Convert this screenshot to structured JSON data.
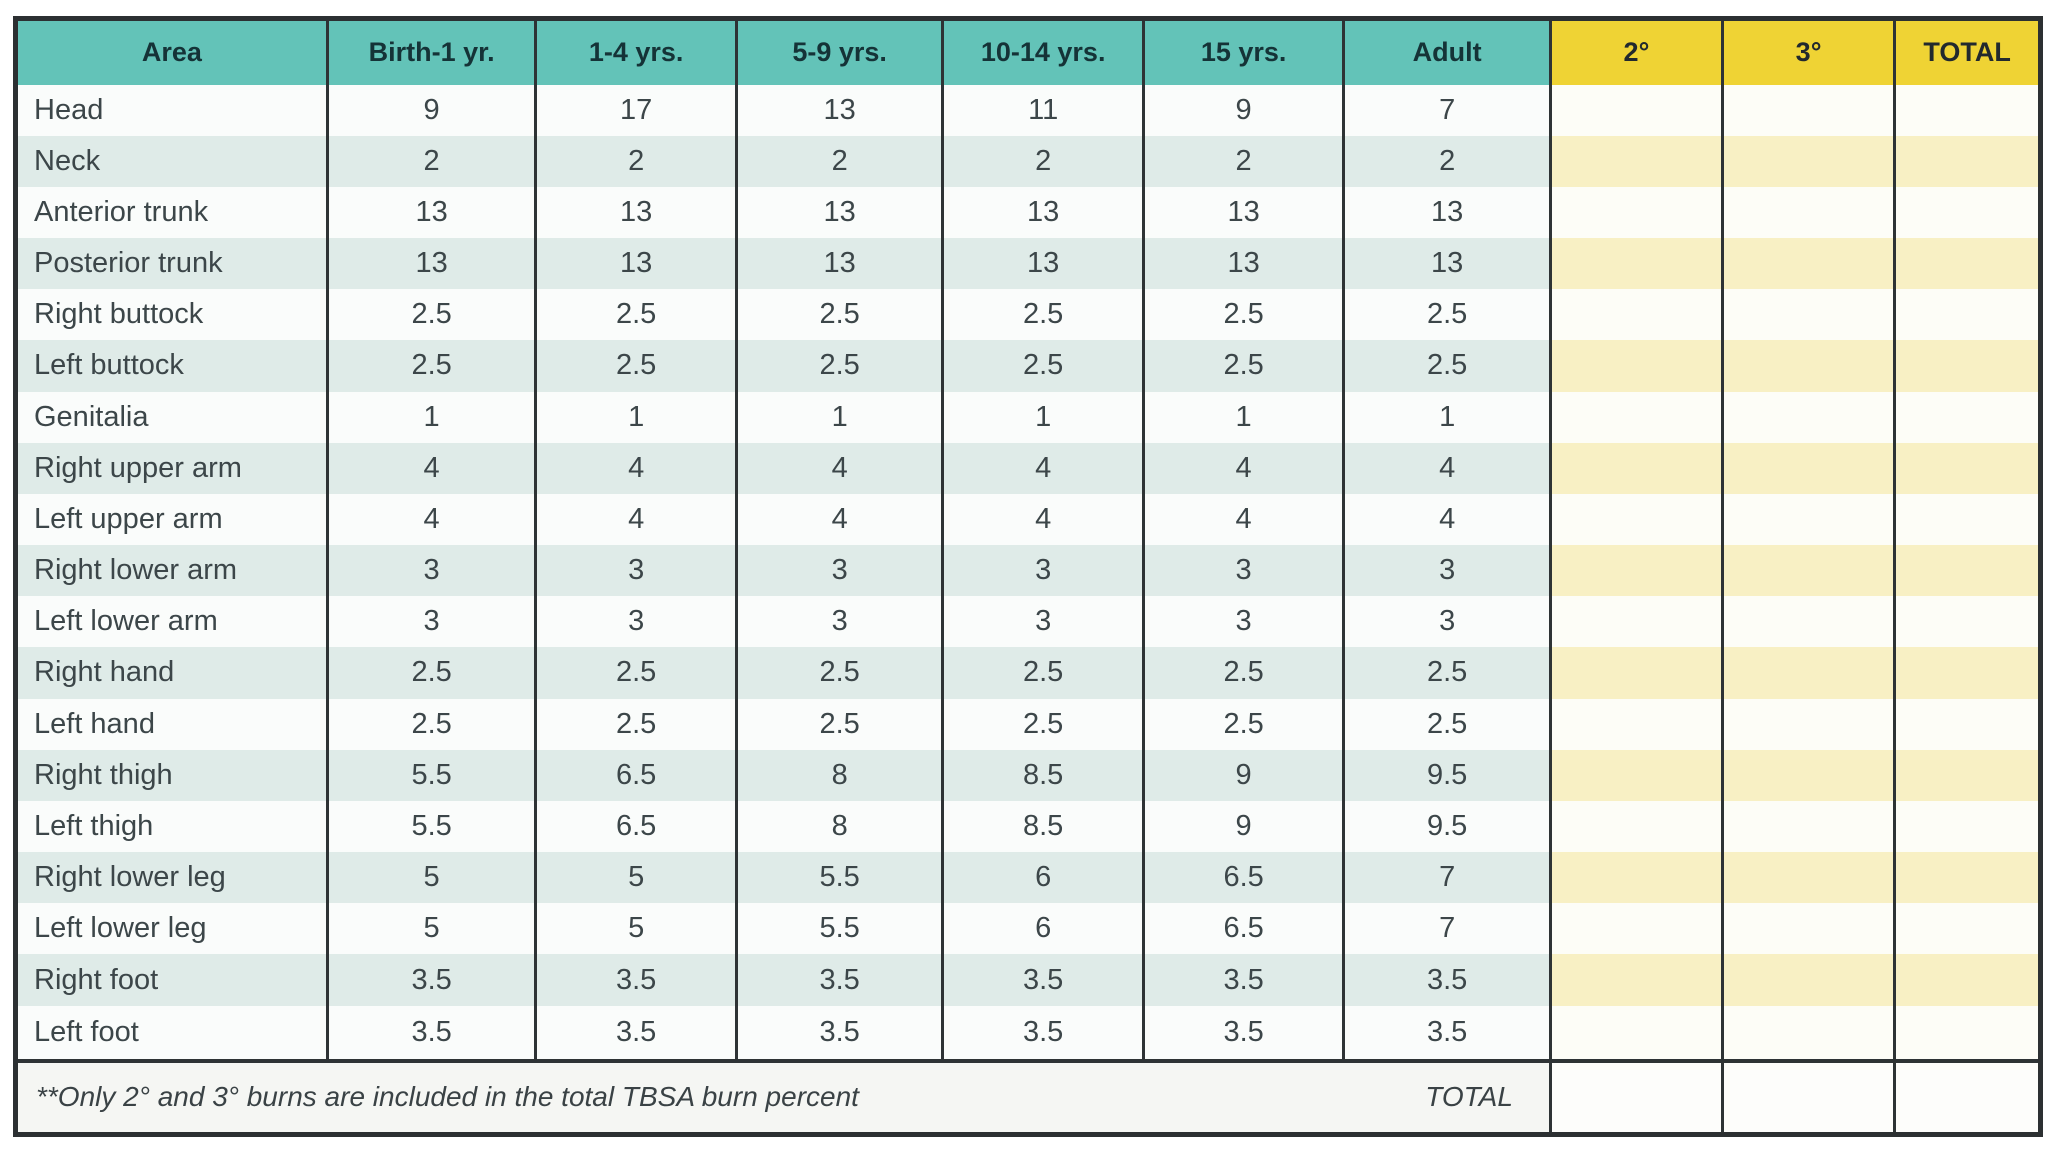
{
  "table": {
    "columns": [
      {
        "key": "area",
        "label": "Area",
        "group": "teal"
      },
      {
        "key": "age0",
        "label": "Birth-1 yr.",
        "group": "teal"
      },
      {
        "key": "age1",
        "label": "1-4 yrs.",
        "group": "teal"
      },
      {
        "key": "age5",
        "label": "5-9 yrs.",
        "group": "teal"
      },
      {
        "key": "age10",
        "label": "10-14 yrs.",
        "group": "teal"
      },
      {
        "key": "age15",
        "label": "15 yrs.",
        "group": "teal"
      },
      {
        "key": "adult",
        "label": "Adult",
        "group": "teal"
      },
      {
        "key": "deg2",
        "label": "2°",
        "group": "yellow"
      },
      {
        "key": "deg3",
        "label": "3°",
        "group": "yellow"
      },
      {
        "key": "total",
        "label": "TOTAL",
        "group": "yellow"
      }
    ],
    "rows": [
      {
        "area": "Head",
        "values": [
          "9",
          "17",
          "13",
          "11",
          "9",
          "7"
        ]
      },
      {
        "area": "Neck",
        "values": [
          "2",
          "2",
          "2",
          "2",
          "2",
          "2"
        ]
      },
      {
        "area": "Anterior trunk",
        "values": [
          "13",
          "13",
          "13",
          "13",
          "13",
          "13"
        ]
      },
      {
        "area": "Posterior trunk",
        "values": [
          "13",
          "13",
          "13",
          "13",
          "13",
          "13"
        ]
      },
      {
        "area": "Right buttock",
        "values": [
          "2.5",
          "2.5",
          "2.5",
          "2.5",
          "2.5",
          "2.5"
        ]
      },
      {
        "area": "Left buttock",
        "values": [
          "2.5",
          "2.5",
          "2.5",
          "2.5",
          "2.5",
          "2.5"
        ]
      },
      {
        "area": "Genitalia",
        "values": [
          "1",
          "1",
          "1",
          "1",
          "1",
          "1"
        ]
      },
      {
        "area": "Right upper arm",
        "values": [
          "4",
          "4",
          "4",
          "4",
          "4",
          "4"
        ]
      },
      {
        "area": "Left upper arm",
        "values": [
          "4",
          "4",
          "4",
          "4",
          "4",
          "4"
        ]
      },
      {
        "area": "Right lower arm",
        "values": [
          "3",
          "3",
          "3",
          "3",
          "3",
          "3"
        ]
      },
      {
        "area": "Left lower arm",
        "values": [
          "3",
          "3",
          "3",
          "3",
          "3",
          "3"
        ]
      },
      {
        "area": "Right hand",
        "values": [
          "2.5",
          "2.5",
          "2.5",
          "2.5",
          "2.5",
          "2.5"
        ]
      },
      {
        "area": "Left hand",
        "values": [
          "2.5",
          "2.5",
          "2.5",
          "2.5",
          "2.5",
          "2.5"
        ]
      },
      {
        "area": "Right thigh",
        "values": [
          "5.5",
          "6.5",
          "8",
          "8.5",
          "9",
          "9.5"
        ]
      },
      {
        "area": "Left thigh",
        "values": [
          "5.5",
          "6.5",
          "8",
          "8.5",
          "9",
          "9.5"
        ]
      },
      {
        "area": "Right lower leg",
        "values": [
          "5",
          "5",
          "5.5",
          "6",
          "6.5",
          "7"
        ]
      },
      {
        "area": "Left lower leg",
        "values": [
          "5",
          "5",
          "5.5",
          "6",
          "6.5",
          "7"
        ]
      },
      {
        "area": "Right foot",
        "values": [
          "3.5",
          "3.5",
          "3.5",
          "3.5",
          "3.5",
          "3.5"
        ]
      },
      {
        "area": "Left foot",
        "values": [
          "3.5",
          "3.5",
          "3.5",
          "3.5",
          "3.5",
          "3.5"
        ]
      }
    ],
    "entry_columns_empty": [
      "2°",
      "3°",
      "TOTAL"
    ],
    "footer": {
      "note": "**Only 2° and 3° burns are included in the total TBSA burn percent",
      "total_label": "TOTAL"
    }
  },
  "colors": {
    "header_teal": "#63c3b8",
    "header_yellow": "#efd334",
    "stripe_teal": "#dfebe8",
    "stripe_yellow": "#f8f0c4",
    "border_dark": "#2e3335",
    "body_text": "#3c4649"
  }
}
